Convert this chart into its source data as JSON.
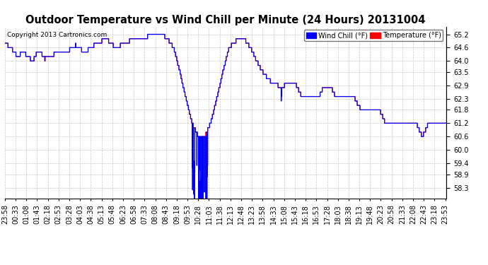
{
  "title": "Outdoor Temperature vs Wind Chill per Minute (24 Hours) 20131004",
  "copyright_text": "Copyright 2013 Cartronics.com",
  "legend_wind_chill": "Wind Chill (°F)",
  "legend_temperature": "Temperature (°F)",
  "temp_color": "#ff0000",
  "wind_color": "#0000ff",
  "bg_color": "#ffffff",
  "plot_bg_color": "#ffffff",
  "grid_color": "#bbbbbb",
  "ylim_min": 57.8,
  "ylim_max": 65.55,
  "yticks": [
    58.3,
    58.9,
    59.4,
    60.0,
    60.6,
    61.2,
    61.8,
    62.3,
    62.9,
    63.5,
    64.0,
    64.6,
    65.2
  ],
  "title_fontsize": 10.5,
  "tick_fontsize": 7,
  "copyright_fontsize": 6.5
}
